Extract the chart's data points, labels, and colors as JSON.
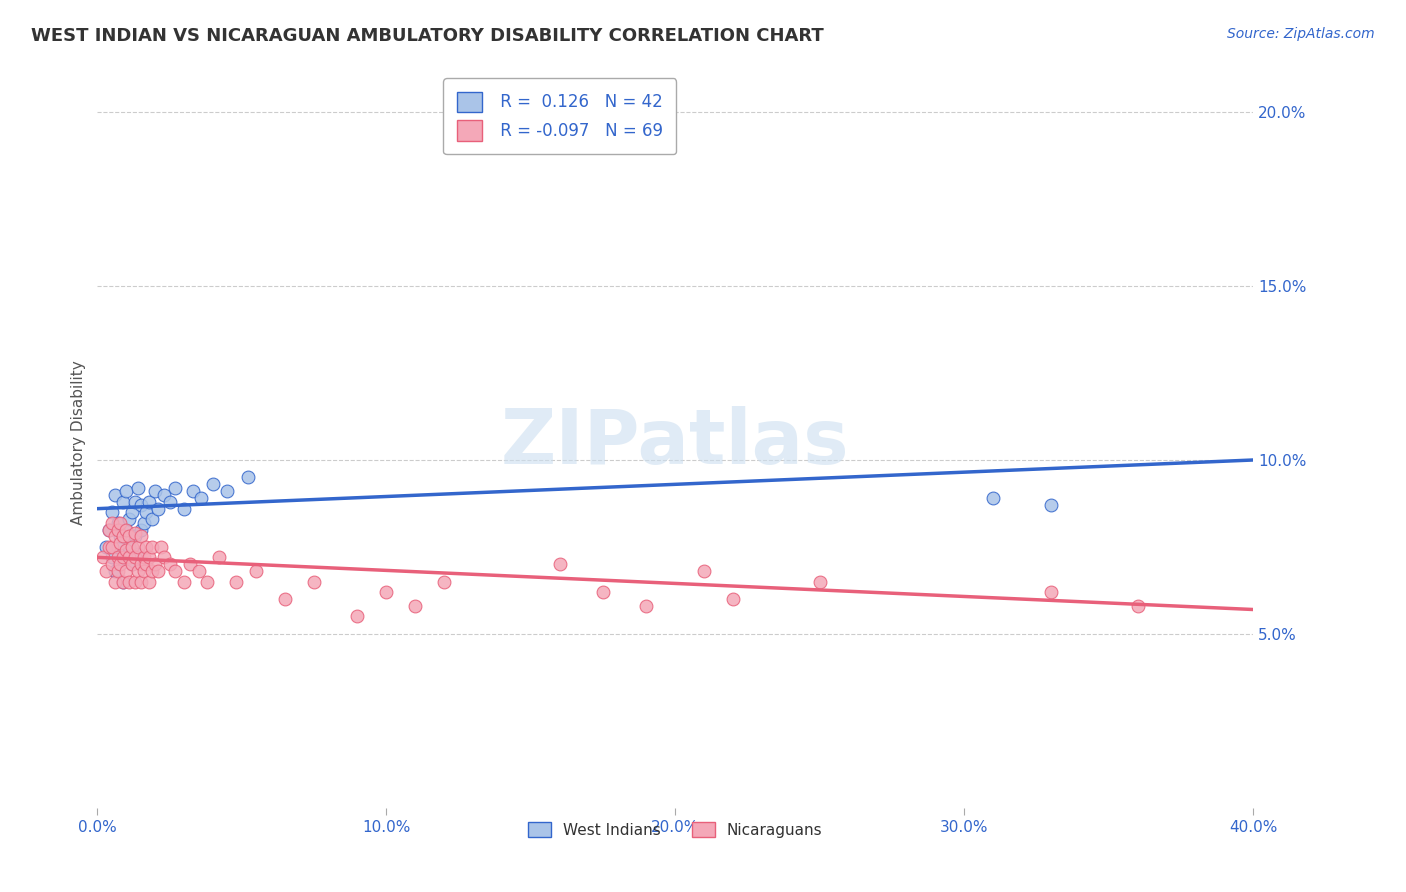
{
  "title": "WEST INDIAN VS NICARAGUAN AMBULATORY DISABILITY CORRELATION CHART",
  "source": "Source: ZipAtlas.com",
  "ylabel": "Ambulatory Disability",
  "xlim": [
    0.0,
    0.4
  ],
  "ylim": [
    0.0,
    0.21
  ],
  "xticks": [
    0.0,
    0.1,
    0.2,
    0.3,
    0.4
  ],
  "yticks_right": [
    0.05,
    0.1,
    0.15,
    0.2
  ],
  "ytick_labels_right": [
    "5.0%",
    "10.0%",
    "15.0%",
    "20.0%"
  ],
  "xtick_labels": [
    "0.0%",
    "10.0%",
    "20.0%",
    "30.0%",
    "40.0%"
  ],
  "blue_R": 0.126,
  "blue_N": 42,
  "pink_R": -0.097,
  "pink_N": 69,
  "blue_color": "#aac4e8",
  "pink_color": "#f4a8b8",
  "blue_line_color": "#3366cc",
  "pink_line_color": "#e8607a",
  "background_color": "#ffffff",
  "grid_color": "#cccccc",
  "watermark": "ZIPatlas",
  "legend_label_blue": "West Indians",
  "legend_label_pink": "Nicaraguans",
  "blue_x": [
    0.003,
    0.004,
    0.005,
    0.005,
    0.006,
    0.006,
    0.007,
    0.007,
    0.008,
    0.008,
    0.009,
    0.009,
    0.01,
    0.01,
    0.01,
    0.011,
    0.011,
    0.012,
    0.012,
    0.013,
    0.013,
    0.014,
    0.014,
    0.015,
    0.015,
    0.016,
    0.017,
    0.018,
    0.019,
    0.02,
    0.021,
    0.023,
    0.025,
    0.027,
    0.03,
    0.033,
    0.036,
    0.04,
    0.045,
    0.052,
    0.31,
    0.33
  ],
  "blue_y": [
    0.075,
    0.08,
    0.072,
    0.085,
    0.068,
    0.09,
    0.075,
    0.082,
    0.07,
    0.078,
    0.065,
    0.088,
    0.072,
    0.08,
    0.091,
    0.075,
    0.083,
    0.07,
    0.085,
    0.078,
    0.088,
    0.073,
    0.092,
    0.08,
    0.087,
    0.082,
    0.085,
    0.088,
    0.083,
    0.091,
    0.086,
    0.09,
    0.088,
    0.092,
    0.086,
    0.091,
    0.089,
    0.093,
    0.091,
    0.095,
    0.089,
    0.087
  ],
  "pink_x": [
    0.002,
    0.003,
    0.004,
    0.004,
    0.005,
    0.005,
    0.005,
    0.006,
    0.006,
    0.007,
    0.007,
    0.007,
    0.008,
    0.008,
    0.008,
    0.009,
    0.009,
    0.009,
    0.01,
    0.01,
    0.01,
    0.011,
    0.011,
    0.011,
    0.012,
    0.012,
    0.013,
    0.013,
    0.013,
    0.014,
    0.014,
    0.015,
    0.015,
    0.015,
    0.016,
    0.016,
    0.017,
    0.017,
    0.018,
    0.018,
    0.019,
    0.019,
    0.02,
    0.021,
    0.022,
    0.023,
    0.025,
    0.027,
    0.03,
    0.032,
    0.035,
    0.038,
    0.042,
    0.048,
    0.055,
    0.065,
    0.075,
    0.09,
    0.1,
    0.11,
    0.12,
    0.16,
    0.175,
    0.19,
    0.21,
    0.22,
    0.25,
    0.33,
    0.36
  ],
  "pink_y": [
    0.072,
    0.068,
    0.075,
    0.08,
    0.07,
    0.075,
    0.082,
    0.065,
    0.078,
    0.072,
    0.068,
    0.08,
    0.07,
    0.076,
    0.082,
    0.065,
    0.072,
    0.078,
    0.068,
    0.074,
    0.08,
    0.065,
    0.072,
    0.078,
    0.07,
    0.075,
    0.065,
    0.072,
    0.079,
    0.068,
    0.075,
    0.065,
    0.07,
    0.078,
    0.072,
    0.068,
    0.07,
    0.075,
    0.065,
    0.072,
    0.068,
    0.075,
    0.07,
    0.068,
    0.075,
    0.072,
    0.07,
    0.068,
    0.065,
    0.07,
    0.068,
    0.065,
    0.072,
    0.065,
    0.068,
    0.06,
    0.065,
    0.055,
    0.062,
    0.058,
    0.065,
    0.07,
    0.062,
    0.058,
    0.068,
    0.06,
    0.065,
    0.062,
    0.058
  ],
  "blue_line_start_y": 0.086,
  "blue_line_end_y": 0.1,
  "pink_line_start_y": 0.072,
  "pink_line_end_y": 0.057
}
